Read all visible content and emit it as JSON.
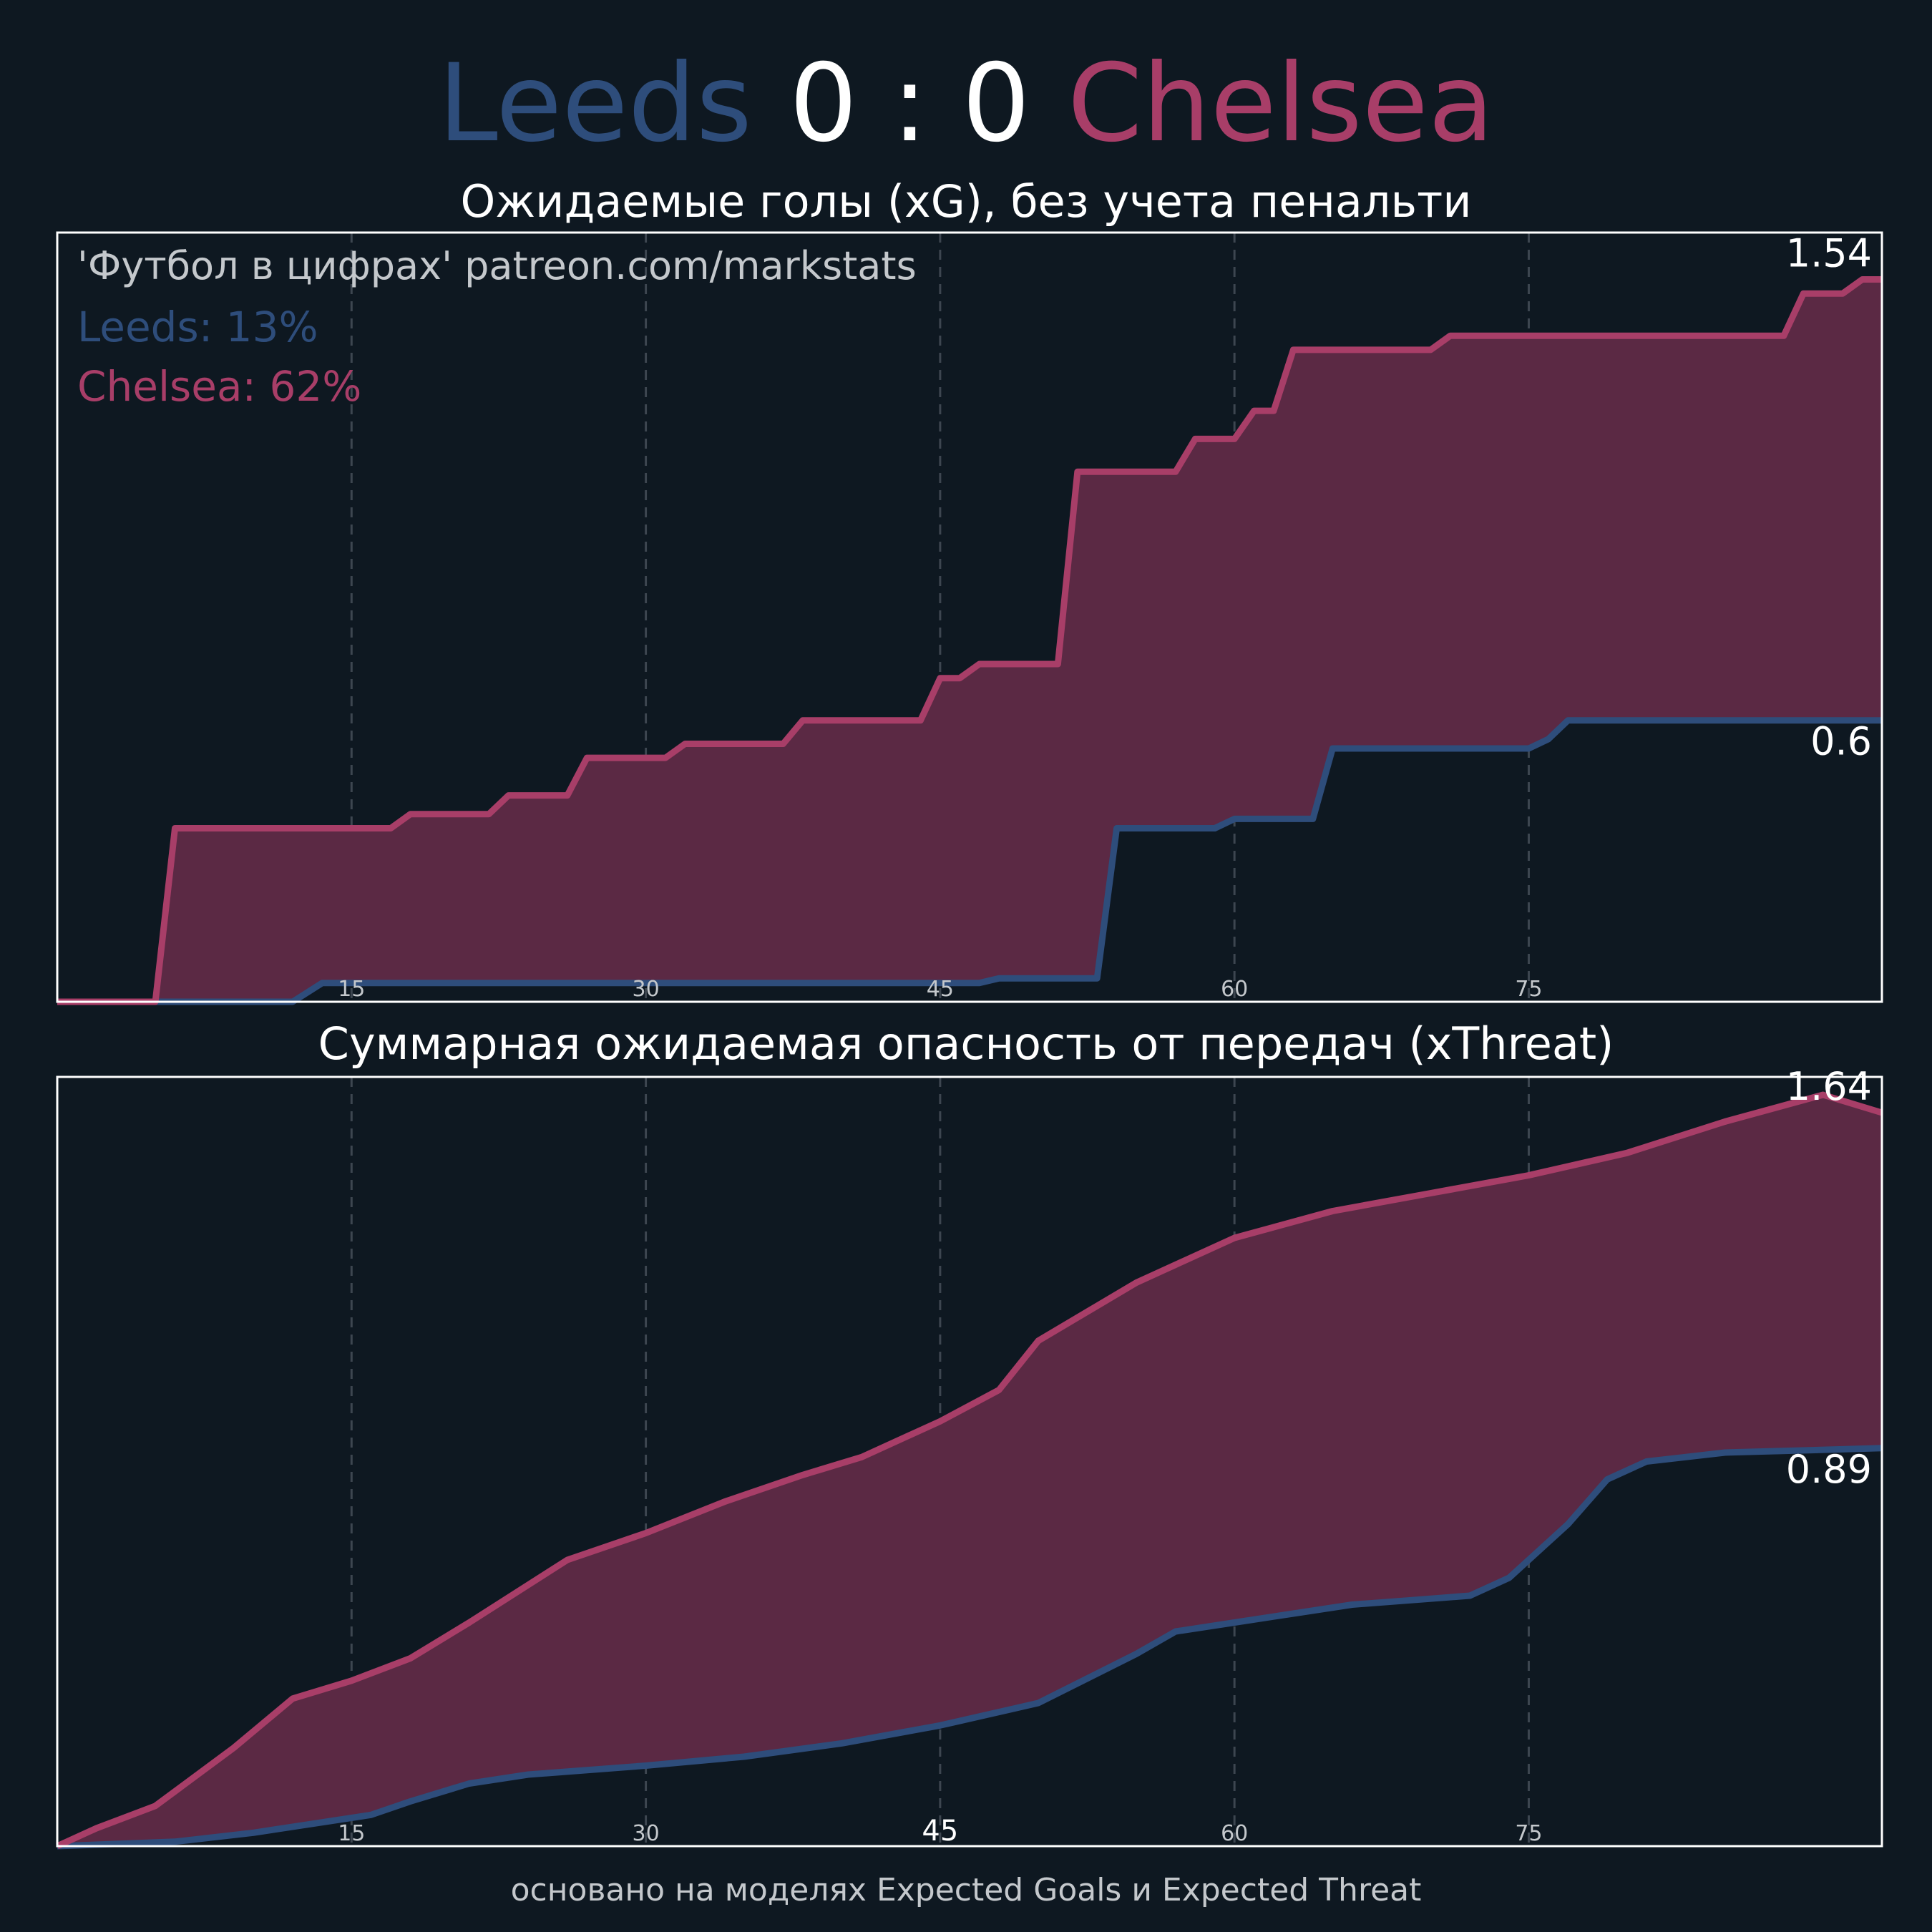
{
  "match": {
    "home": "Leeds",
    "away": "Chelsea",
    "score": "0 : 0"
  },
  "colors": {
    "background": "#0e1821",
    "home": "#2e4d7b",
    "away": "#a83e68",
    "fill": "#5b2944",
    "grid": "#3d4650"
  },
  "footer": "основано на моделях Expected Goals и Expected Threat",
  "chart_data": [
    {
      "type": "line",
      "title": "Ожидаемые голы (xG), без учета пенальти",
      "watermark": "'Футбол в цифрах' patreon.com/markstats",
      "legend": [
        {
          "label": "Leeds: 13%",
          "series": "Leeds"
        },
        {
          "label": "Chelsea: 62%",
          "series": "Chelsea"
        }
      ],
      "x_ticks": [
        "15",
        "30",
        "45",
        "60",
        "75"
      ],
      "xlim": [
        0,
        93
      ],
      "ylim": [
        0,
        1.64
      ],
      "grid": "vertical dashed",
      "end_labels": [
        "1.54",
        "0.6"
      ],
      "series": [
        {
          "name": "Leeds",
          "step": true,
          "points": [
            [
              0,
              0
            ],
            [
              12,
              0
            ],
            [
              13.5,
              0.04
            ],
            [
              47,
              0.04
            ],
            [
              48,
              0.05
            ],
            [
              53,
              0.05
            ],
            [
              54,
              0.37
            ],
            [
              59,
              0.37
            ],
            [
              60,
              0.39
            ],
            [
              64,
              0.39
            ],
            [
              65,
              0.54
            ],
            [
              75,
              0.54
            ],
            [
              76,
              0.56
            ],
            [
              77,
              0.6
            ],
            [
              93,
              0.6
            ]
          ]
        },
        {
          "name": "Chelsea",
          "step": true,
          "points": [
            [
              0,
              0
            ],
            [
              5,
              0
            ],
            [
              6,
              0.37
            ],
            [
              17,
              0.37
            ],
            [
              18,
              0.4
            ],
            [
              22,
              0.4
            ],
            [
              23,
              0.44
            ],
            [
              26,
              0.44
            ],
            [
              27,
              0.52
            ],
            [
              31,
              0.52
            ],
            [
              32,
              0.55
            ],
            [
              37,
              0.55
            ],
            [
              38,
              0.6
            ],
            [
              44,
              0.6
            ],
            [
              45,
              0.69
            ],
            [
              46,
              0.69
            ],
            [
              47,
              0.72
            ],
            [
              51,
              0.72
            ],
            [
              52,
              1.13
            ],
            [
              57,
              1.13
            ],
            [
              58,
              1.2
            ],
            [
              60,
              1.2
            ],
            [
              61,
              1.26
            ],
            [
              62,
              1.26
            ],
            [
              63,
              1.39
            ],
            [
              70,
              1.39
            ],
            [
              71,
              1.42
            ],
            [
              88,
              1.42
            ],
            [
              89,
              1.51
            ],
            [
              91,
              1.51
            ],
            [
              92,
              1.54
            ],
            [
              93,
              1.54
            ]
          ]
        }
      ]
    },
    {
      "type": "line",
      "title": "Суммарная ожидаемая опасность от передач (xThreat)",
      "x_ticks": [
        "15",
        "30",
        "45",
        "60",
        "75"
      ],
      "xlim": [
        0,
        93
      ],
      "ylim": [
        0,
        1.72
      ],
      "grid": "vertical dashed",
      "end_labels": [
        "1.64",
        "0.89"
      ],
      "series": [
        {
          "name": "Leeds",
          "points": [
            [
              0,
              0
            ],
            [
              6,
              0.01
            ],
            [
              10,
              0.03
            ],
            [
              13,
              0.05
            ],
            [
              16,
              0.07
            ],
            [
              18,
              0.1
            ],
            [
              21,
              0.14
            ],
            [
              24,
              0.16
            ],
            [
              30,
              0.18
            ],
            [
              35,
              0.2
            ],
            [
              40,
              0.23
            ],
            [
              45,
              0.27
            ],
            [
              50,
              0.32
            ],
            [
              55,
              0.43
            ],
            [
              57,
              0.48
            ],
            [
              60,
              0.5
            ],
            [
              63,
              0.52
            ],
            [
              66,
              0.54
            ],
            [
              69,
              0.55
            ],
            [
              72,
              0.56
            ],
            [
              74,
              0.6
            ],
            [
              77,
              0.72
            ],
            [
              79,
              0.82
            ],
            [
              81,
              0.86
            ],
            [
              85,
              0.88
            ],
            [
              93,
              0.89
            ]
          ]
        },
        {
          "name": "Chelsea",
          "points": [
            [
              0,
              0
            ],
            [
              2,
              0.04
            ],
            [
              5,
              0.09
            ],
            [
              9,
              0.22
            ],
            [
              12,
              0.33
            ],
            [
              15,
              0.37
            ],
            [
              18,
              0.42
            ],
            [
              21,
              0.5
            ],
            [
              26,
              0.64
            ],
            [
              30,
              0.7
            ],
            [
              34,
              0.77
            ],
            [
              38,
              0.83
            ],
            [
              41,
              0.87
            ],
            [
              45,
              0.95
            ],
            [
              48,
              1.02
            ],
            [
              50,
              1.13
            ],
            [
              55,
              1.26
            ],
            [
              57,
              1.3
            ],
            [
              60,
              1.36
            ],
            [
              65,
              1.42
            ],
            [
              70,
              1.46
            ],
            [
              75,
              1.5
            ],
            [
              80,
              1.55
            ],
            [
              85,
              1.62
            ],
            [
              90,
              1.68
            ],
            [
              93,
              1.64
            ]
          ]
        }
      ]
    }
  ]
}
